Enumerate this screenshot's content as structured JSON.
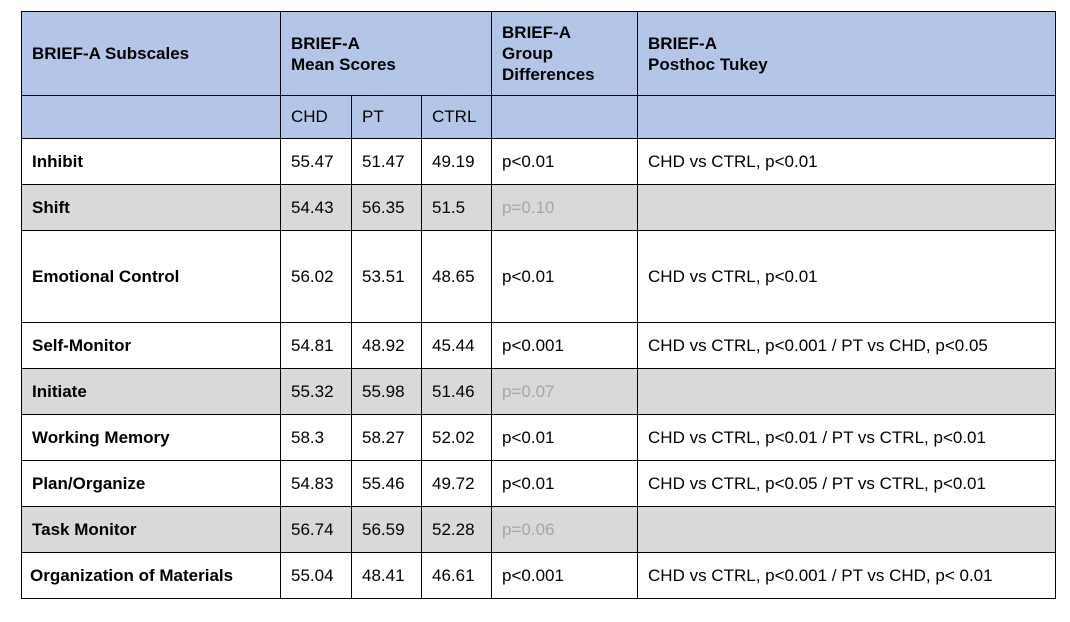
{
  "header": {
    "subscales": "BRIEF-A Subscales",
    "mean_line1": "BRIEF-A",
    "mean_line2": "Mean Scores",
    "diff_line1": "BRIEF-A",
    "diff_line2": "Group",
    "diff_line3": "Differences",
    "posthoc_line1": "BRIEF-A",
    "posthoc_line2": "Posthoc Tukey"
  },
  "subheader": {
    "chd": "CHD",
    "pt": "PT",
    "ctrl": "CTRL"
  },
  "rows": [
    {
      "label": "Inhibit",
      "chd": "55.47",
      "pt": "51.47",
      "ctrl": "49.19",
      "diff": "p<0.01",
      "posthoc": "CHD vs CTRL, p<0.01"
    },
    {
      "label": "Shift",
      "chd": "54.43",
      "pt": "56.35",
      "ctrl": "51.5",
      "diff": "p=0.10",
      "posthoc": ""
    },
    {
      "label": "Emotional Control",
      "chd": "56.02",
      "pt": "53.51",
      "ctrl": "48.65",
      "diff": "p<0.01",
      "posthoc": "CHD vs CTRL, p<0.01"
    },
    {
      "label": "Self-Monitor",
      "chd": "54.81",
      "pt": "48.92",
      "ctrl": "45.44",
      "diff": "p<0.001",
      "posthoc": "CHD vs CTRL, p<0.001 / PT vs CHD, p<0.05"
    },
    {
      "label": "Initiate",
      "chd": "55.32",
      "pt": "55.98",
      "ctrl": "51.46",
      "diff": "p=0.07",
      "posthoc": ""
    },
    {
      "label": "Working Memory",
      "chd": "58.3",
      "pt": "58.27",
      "ctrl": "52.02",
      "diff": "p<0.01",
      "posthoc": "CHD vs CTRL, p<0.01 / PT vs CTRL, p<0.01"
    },
    {
      "label": "Plan/Organize",
      "chd": "54.83",
      "pt": "55.46",
      "ctrl": "49.72",
      "diff": "p<0.01",
      "posthoc": "CHD vs CTRL, p<0.05 / PT vs CTRL, p<0.01"
    },
    {
      "label": "Task Monitor",
      "chd": "56.74",
      "pt": "56.59",
      "ctrl": "52.28",
      "diff": "p=0.06",
      "posthoc": ""
    },
    {
      "label": "Organization of Materials",
      "chd": "55.04",
      "pt": "48.41",
      "ctrl": "46.61",
      "diff": "p<0.001",
      "posthoc": "CHD vs CTRL, p<0.001 / PT vs CHD, p< 0.01"
    }
  ]
}
